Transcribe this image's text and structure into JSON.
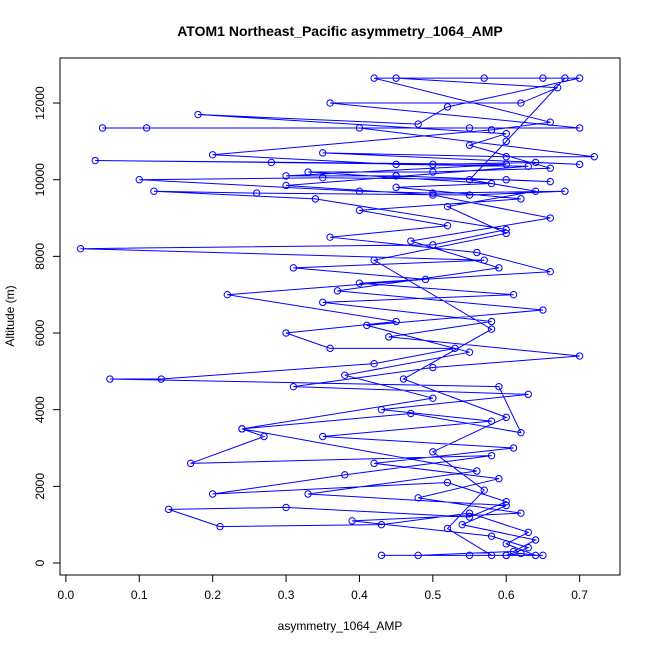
{
  "chart_data": {
    "type": "line",
    "title": "ATOM1 Northeast_Pacific asymmetry_1064_AMP",
    "xlabel": "asymmetry_1064_AMP",
    "ylabel": "Altitude (m)",
    "color": "#0000ff",
    "markers": true,
    "xlim": [
      -0.008,
      0.755
    ],
    "ylim": [
      -313,
      13175
    ],
    "xticks": [
      {
        "value": 0,
        "label": "0.0"
      },
      0.1,
      0.2,
      0.3,
      0.4,
      0.5,
      0.6,
      0.7
    ],
    "yticks": [
      0,
      2000,
      4000,
      6000,
      8000,
      10000,
      12000
    ],
    "x": [
      0.43,
      0.55,
      0.6,
      0.62,
      0.64,
      0.6,
      0.63,
      0.55,
      0.43,
      0.21,
      0.14,
      0.3,
      0.55,
      0.6,
      0.52,
      0.2,
      0.38,
      0.58,
      0.17,
      0.27,
      0.24,
      0.47,
      0.62,
      0.59,
      0.06,
      0.13,
      0.42,
      0.53,
      0.36,
      0.3,
      0.45,
      0.22,
      0.49,
      0.31,
      0.57,
      0.02,
      0.5,
      0.6,
      0.34,
      0.12,
      0.26,
      0.55,
      0.68,
      0.5,
      0.4,
      0.1,
      0.35,
      0.6,
      0.66,
      0.45,
      0.3,
      0.6,
      0.04,
      0.28,
      0.5,
      0.64,
      0.7,
      0.35,
      0.6,
      0.72,
      0.4,
      0.05,
      0.11,
      0.55,
      0.7,
      0.36,
      0.62,
      0.67,
      0.45,
      0.57,
      0.65,
      0.7,
      0.52,
      0.48,
      0.18,
      0.6,
      0.55,
      0.66,
      0.5,
      0.33,
      0.58,
      0.45,
      0.62,
      0.4,
      0.52,
      0.36,
      0.56,
      0.66,
      0.4,
      0.61,
      0.35,
      0.58,
      0.44,
      0.7,
      0.5,
      0.31,
      0.63,
      0.43,
      0.58,
      0.35,
      0.61,
      0.42,
      0.59,
      0.48,
      0.62,
      0.39,
      0.58,
      0.63,
      0.6,
      0.65,
      0.48,
      0.61,
      0.64,
      0.54,
      0.6,
      0.33,
      0.56,
      0.24,
      0.5,
      0.38,
      0.55,
      0.41,
      0.65,
      0.37,
      0.59,
      0.47,
      0.66,
      0.5,
      0.3,
      0.63,
      0.45,
      0.2,
      0.58,
      0.66,
      0.42,
      0.68,
      0.6,
      0.55,
      0.64,
      0.52,
      0.6,
      0.42,
      0.58,
      0.46,
      0.6,
      0.5,
      0.57,
      0.52,
      0.58
    ],
    "values": [
      200,
      200,
      200,
      250,
      200,
      500,
      800,
      1300,
      1000,
      950,
      1400,
      1450,
      1200,
      1600,
      2100,
      1800,
      2300,
      2800,
      2600,
      3300,
      3500,
      3900,
      3400,
      4600,
      4800,
      4800,
      5200,
      5600,
      5600,
      6000,
      6300,
      7000,
      7400,
      7700,
      7900,
      8200,
      8300,
      8700,
      9500,
      9700,
      9650,
      9600,
      9700,
      9650,
      9700,
      10000,
      10050,
      10000,
      9950,
      10100,
      10100,
      10400,
      10500,
      10450,
      10400,
      10450,
      10400,
      10700,
      10600,
      10600,
      11350,
      11350,
      11350,
      11350,
      11350,
      12000,
      12000,
      12400,
      12650,
      12650,
      12650,
      12650,
      11900,
      11450,
      11700,
      11200,
      10900,
      10300,
      10200,
      10200,
      9900,
      9800,
      9500,
      9200,
      8800,
      8500,
      8100,
      7600,
      7300,
      7000,
      6800,
      6300,
      5900,
      5400,
      5100,
      4600,
      4400,
      4000,
      3700,
      3300,
      3000,
      2600,
      2200,
      1700,
      1300,
      1100,
      700,
      400,
      200,
      200,
      200,
      300,
      600,
      1000,
      1500,
      1800,
      2400,
      3500,
      4300,
      4900,
      5500,
      6200,
      6600,
      7100,
      7700,
      8400,
      9000,
      9600,
      9850,
      10350,
      10400,
      10650,
      11300,
      11500,
      12650,
      12650,
      11000,
      10000,
      9700,
      9300,
      8600,
      7900,
      6100,
      4800,
      3800,
      2900,
      1900,
      900,
      200
    ]
  }
}
